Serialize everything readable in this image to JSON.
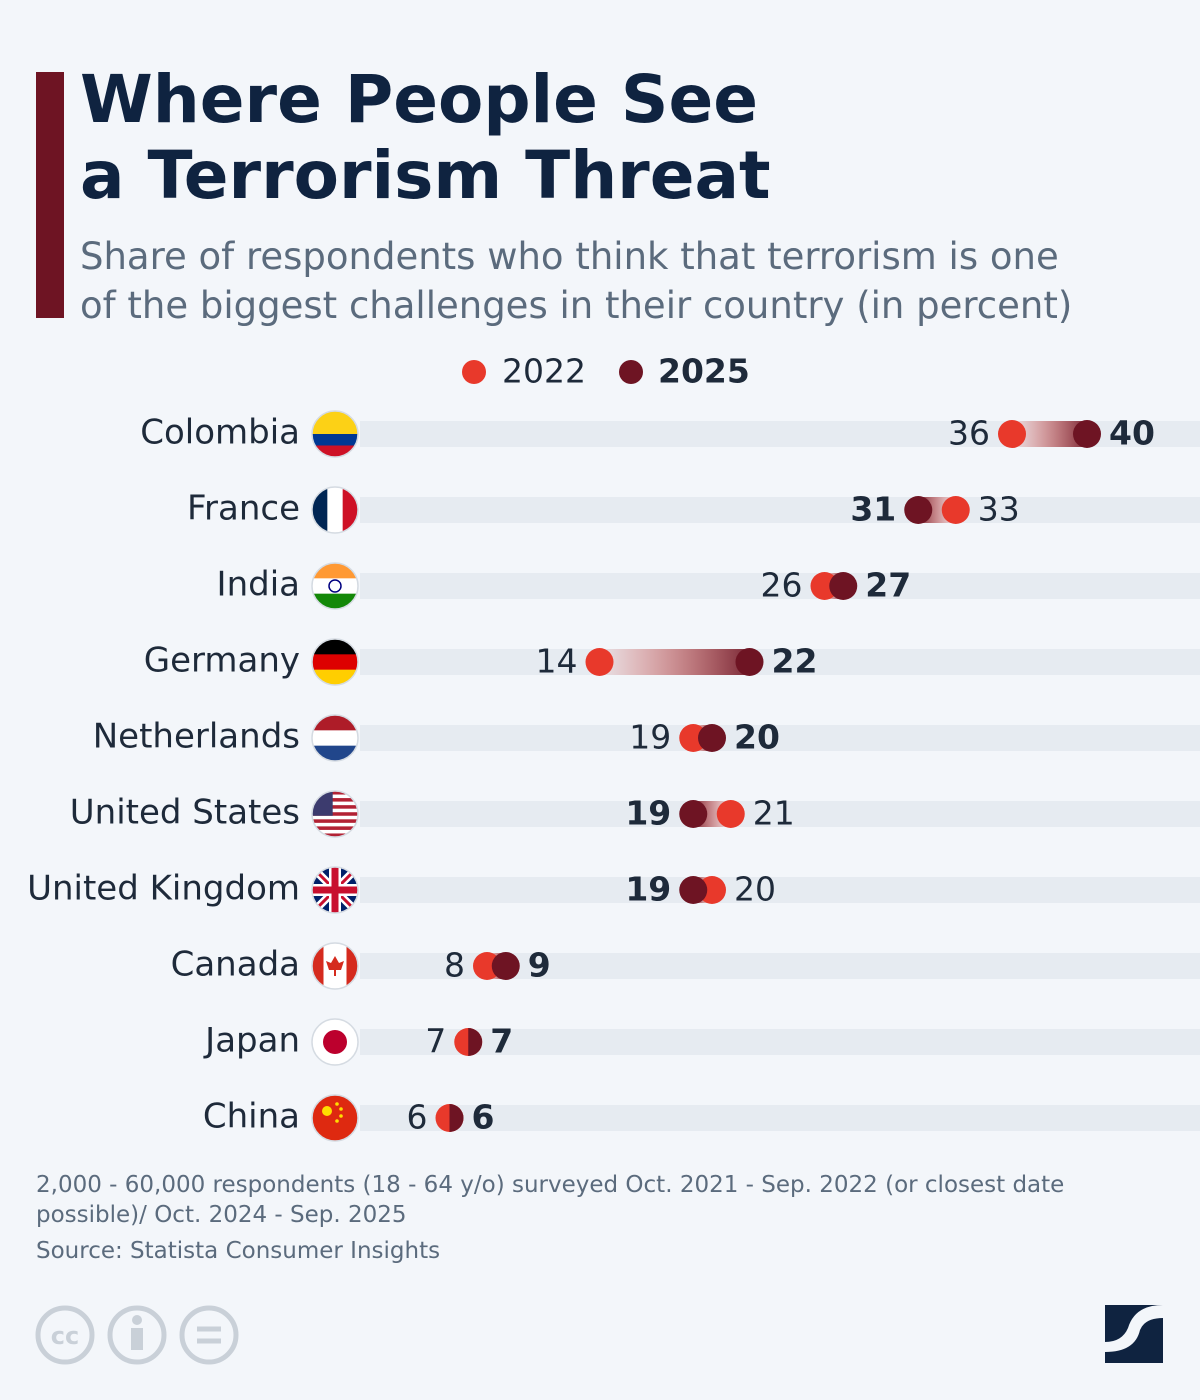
{
  "chart_data": {
    "type": "dumbbell",
    "title": "Where People See a Terrorism Threat",
    "subtitle": "Share of respondents who think that terrorism is one of the biggest challenges in their country (in percent)",
    "categories": [
      "Colombia",
      "France",
      "India",
      "Germany",
      "Netherlands",
      "United States",
      "United Kingdom",
      "Canada",
      "Japan",
      "China"
    ],
    "series": [
      {
        "name": "2022",
        "color": "#e8392b",
        "values": [
          36,
          33,
          26,
          14,
          19,
          21,
          20,
          8,
          7,
          6
        ]
      },
      {
        "name": "2025",
        "color": "#6e1423",
        "values": [
          40,
          31,
          27,
          22,
          20,
          19,
          19,
          9,
          7,
          6
        ]
      }
    ],
    "note": "2,000 - 60,000 respondents (18 - 64 y/o) surveyed Oct. 2021 - Sep. 2022 (or closest date possible)/ Oct. 2024 - Sep. 2025",
    "source": "Source: Statista Consumer Insights",
    "brand": "statista"
  }
}
